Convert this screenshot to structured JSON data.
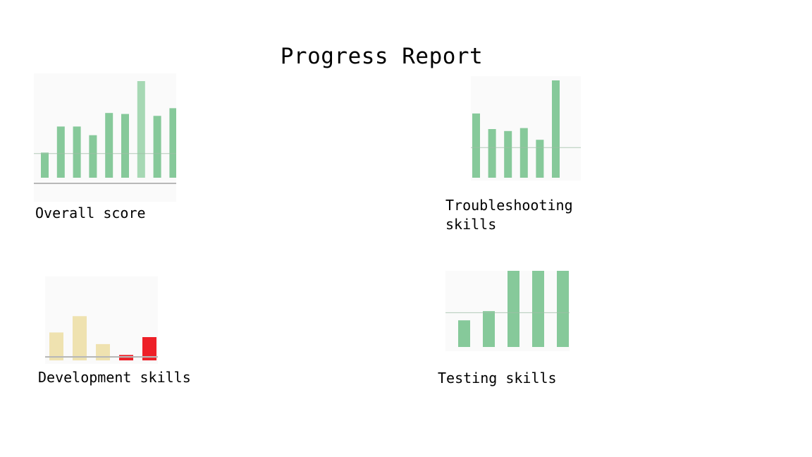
{
  "page": {
    "title": "Progress Report"
  },
  "colors": {
    "green": "#86c99a",
    "green_light": "#a6d8b4",
    "beige": "#efe2b0",
    "red": "#ee2028",
    "axis": "#b8b8b8",
    "refline": "#9fbfa8"
  },
  "chart_data": [
    {
      "id": "overall",
      "type": "bar",
      "label": "Overall score",
      "values": [
        26,
        53,
        53,
        44,
        67,
        66,
        100,
        64,
        72
      ],
      "ylim": [
        0,
        100
      ],
      "reference_line": 25,
      "bar_colors": [
        "#86c99a",
        "#86c99a",
        "#86c99a",
        "#86c99a",
        "#86c99a",
        "#86c99a",
        "#a6d8b4",
        "#86c99a",
        "#86c99a"
      ]
    },
    {
      "id": "troubleshooting",
      "type": "bar",
      "label": "Troubleshooting\nskills",
      "values": [
        66,
        50,
        48,
        51,
        39,
        100
      ],
      "ylim": [
        0,
        100
      ],
      "reference_line": 31,
      "bar_colors": [
        "#86c99a",
        "#86c99a",
        "#86c99a",
        "#86c99a",
        "#86c99a",
        "#86c99a"
      ]
    },
    {
      "id": "development",
      "type": "bar",
      "label": "Development skills",
      "values": [
        36,
        57,
        21,
        7,
        30
      ],
      "ylim": [
        0,
        100
      ],
      "reference_line": 4,
      "bar_colors": [
        "#efe2b0",
        "#efe2b0",
        "#efe2b0",
        "#ee2028",
        "#ee2028"
      ]
    },
    {
      "id": "testing",
      "type": "bar",
      "label": "Testing skills",
      "values": [
        35,
        47,
        100,
        100,
        100
      ],
      "ylim": [
        0,
        100
      ],
      "reference_line": 45,
      "bar_colors": [
        "#86c99a",
        "#86c99a",
        "#86c99a",
        "#86c99a",
        "#86c99a"
      ]
    }
  ]
}
